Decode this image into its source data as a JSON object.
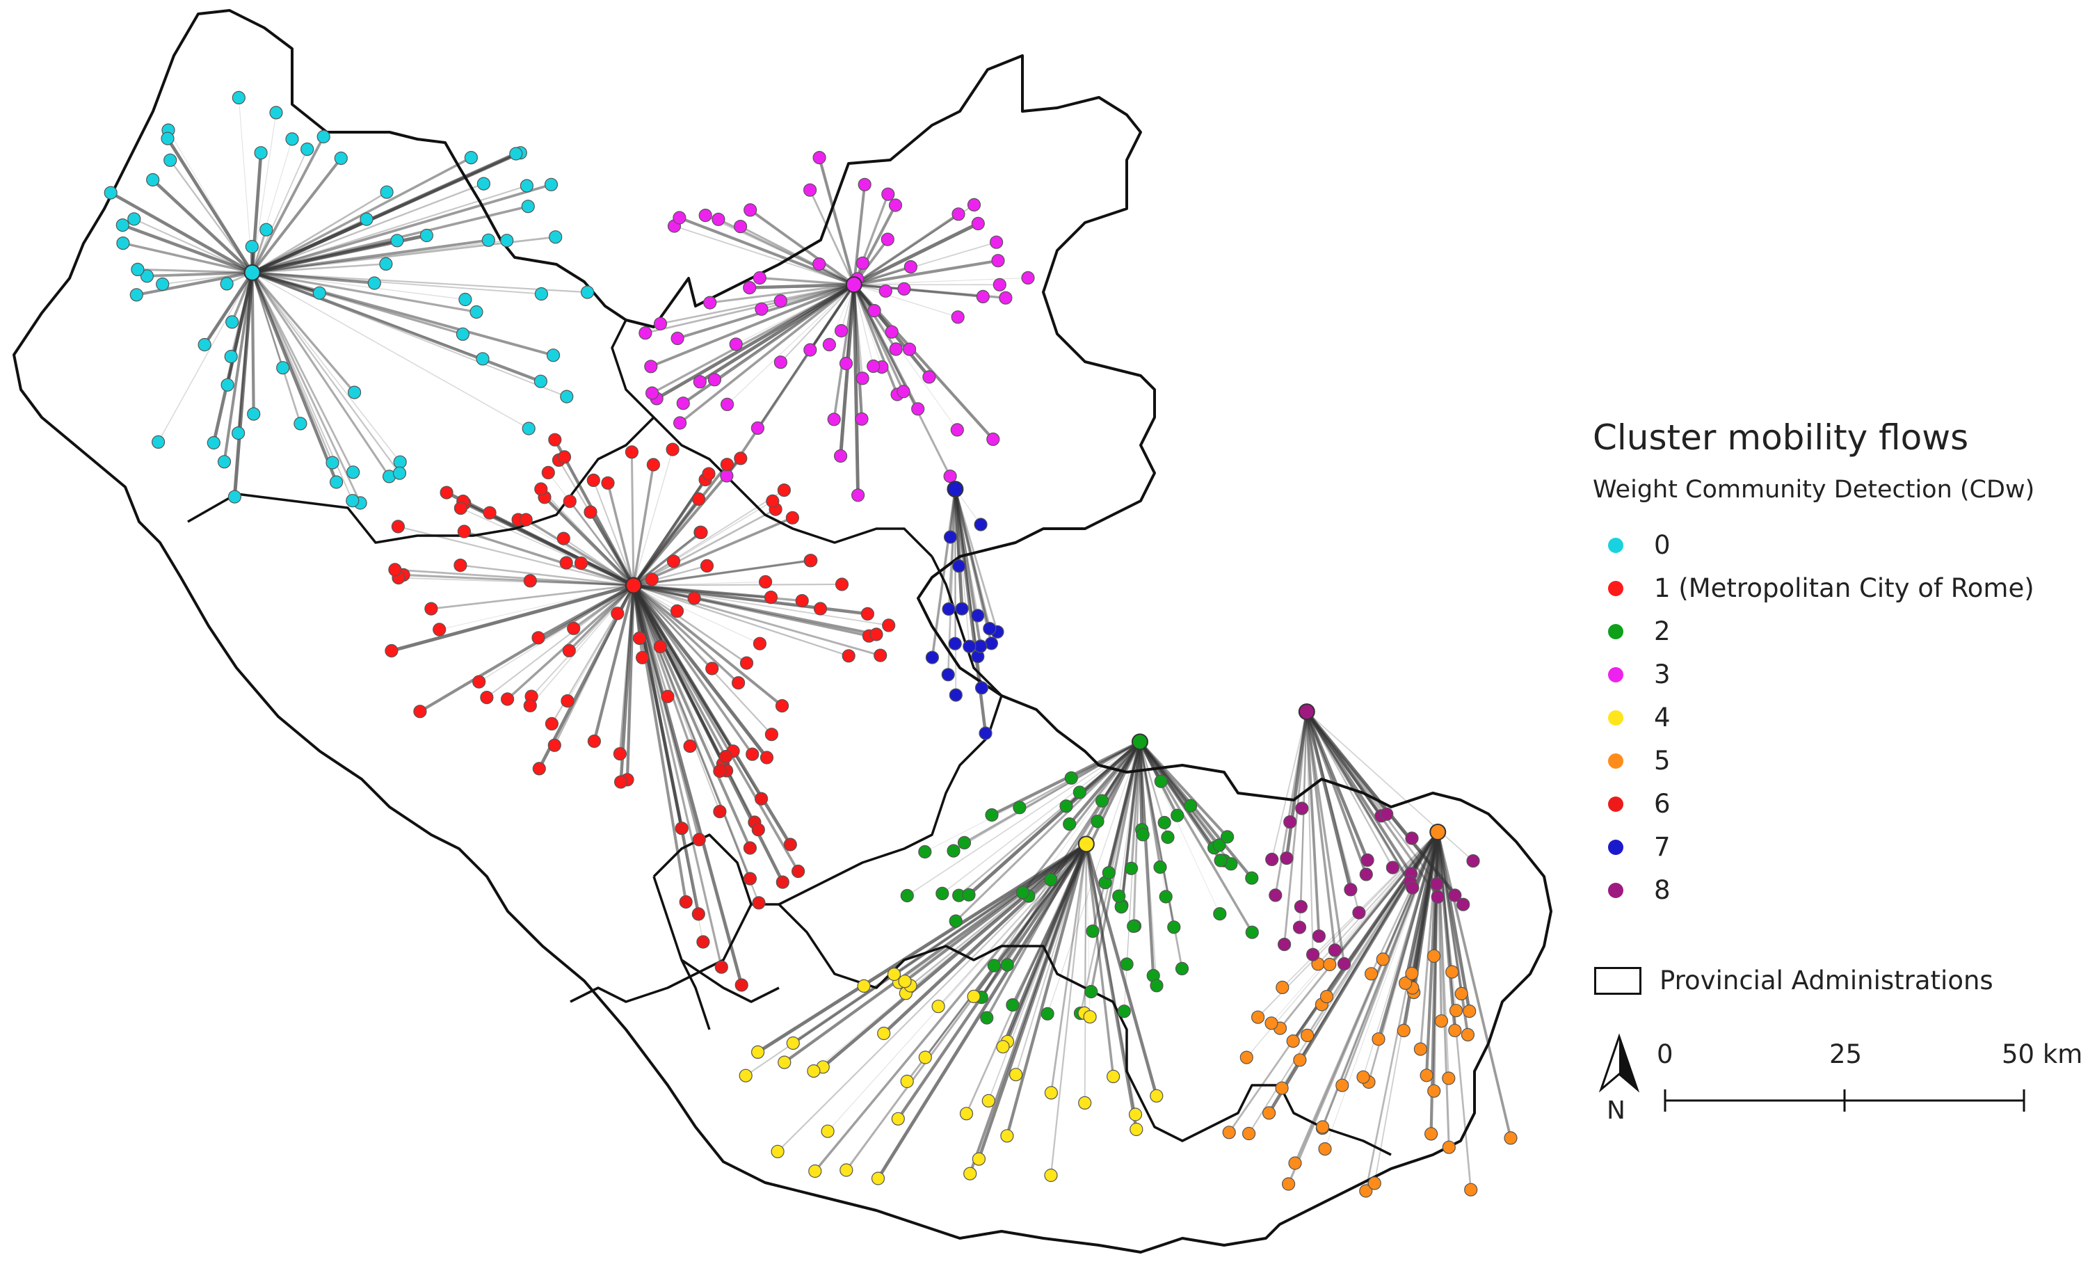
{
  "legend": {
    "title": "Cluster mobility flows",
    "subtitle": "Weight Community Detection (CDw)",
    "clusters": [
      {
        "id": "0",
        "label": "0",
        "color": "#19d2e0"
      },
      {
        "id": "1",
        "label": "1 (Metropolitan City of Rome)",
        "color": "#ff1a1a"
      },
      {
        "id": "2",
        "label": "2",
        "color": "#0fa01a"
      },
      {
        "id": "3",
        "label": "3",
        "color": "#ee22ee"
      },
      {
        "id": "4",
        "label": "4",
        "color": "#ffe51a"
      },
      {
        "id": "5",
        "label": "5",
        "color": "#ff8c1a"
      },
      {
        "id": "6",
        "label": "6",
        "color": "#ee1a1a"
      },
      {
        "id": "7",
        "label": "7",
        "color": "#1a1acc"
      },
      {
        "id": "8",
        "label": "8",
        "color": "#9e1a80"
      }
    ],
    "provincial_label": "Provincial Administrations"
  },
  "scale": {
    "labels": [
      "0",
      "25",
      "50 km"
    ],
    "north_label": "N"
  },
  "map": {
    "region_outline_color": "#111111",
    "flow_color": "#333333",
    "hubs": [
      {
        "cluster": "0",
        "lon": 11.85,
        "lat": 42.42
      },
      {
        "cluster": "3",
        "lon": 12.86,
        "lat": 42.4
      },
      {
        "cluster": "1",
        "lon": 12.49,
        "lat": 41.9
      },
      {
        "cluster": "2",
        "lon": 13.34,
        "lat": 41.64
      },
      {
        "cluster": "4",
        "lon": 13.25,
        "lat": 41.47
      },
      {
        "cluster": "5",
        "lon": 13.84,
        "lat": 41.49
      },
      {
        "cluster": "8",
        "lon": 13.62,
        "lat": 41.69
      },
      {
        "cluster": "7",
        "lon": 13.03,
        "lat": 42.06
      }
    ]
  }
}
